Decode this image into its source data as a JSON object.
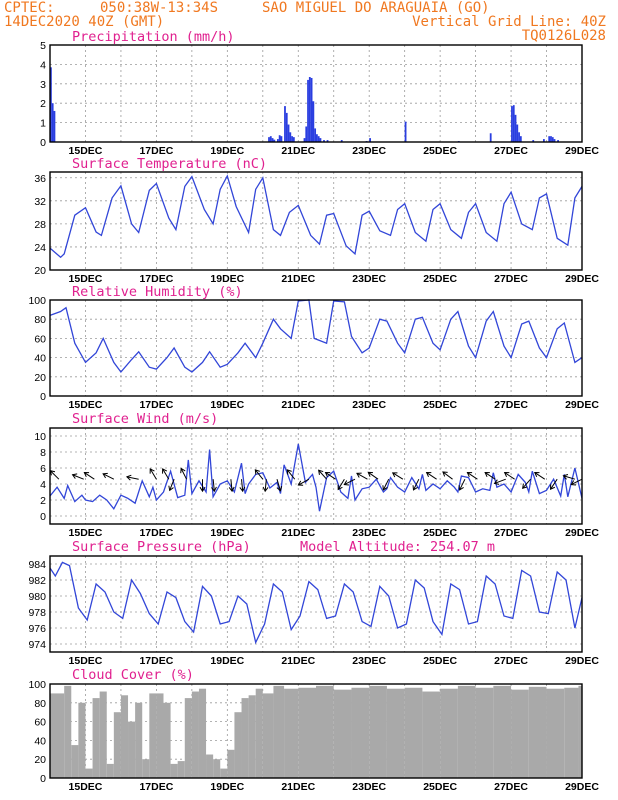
{
  "header": {
    "source": "CPTEC:",
    "coords": "050:38W-13:34S",
    "location": "SAO MIGUEL DO ARAGUAIA (GO)",
    "run": "14DEC2020 40Z (GMT)",
    "grid_note": "Vertical Grid Line: 40Z",
    "code": "TQ0126L028"
  },
  "x_ticks": [
    "15DEC",
    "17DEC",
    "19DEC",
    "21DEC",
    "23DEC",
    "25DEC",
    "27DEC",
    "29DEC"
  ],
  "colors": {
    "series": "#3246d8",
    "bars": "#2a3ee0",
    "cloud": "#a9a9a9",
    "title": "#e0208f",
    "header": "#f07820"
  },
  "chart_data": [
    {
      "type": "bar",
      "title": "Precipitation (mm/h)",
      "x_range": [
        14,
        29
      ],
      "ylim": [
        0,
        5
      ],
      "yticks": [
        0,
        1,
        2,
        3,
        4,
        5
      ],
      "x": [
        14.0,
        14.05,
        14.1,
        20.15,
        20.2,
        20.25,
        20.3,
        20.4,
        20.45,
        20.5,
        20.6,
        20.65,
        20.7,
        20.75,
        20.8,
        20.85,
        21.15,
        21.2,
        21.25,
        21.3,
        21.35,
        21.4,
        21.45,
        21.5,
        21.55,
        21.6,
        21.7,
        21.8,
        22.2,
        22.9,
        23.0,
        24.0,
        25.5,
        26.4,
        27.0,
        27.05,
        27.1,
        27.15,
        27.2,
        27.25,
        27.6,
        27.9,
        28.05,
        28.1,
        28.15,
        28.2,
        28.3
      ],
      "values": [
        3.85,
        2.0,
        1.6,
        0.25,
        0.3,
        0.2,
        0.12,
        0.15,
        0.35,
        0.3,
        1.85,
        1.5,
        0.9,
        0.5,
        0.3,
        0.25,
        0.2,
        0.8,
        3.2,
        3.35,
        3.3,
        2.1,
        0.7,
        0.4,
        0.3,
        0.2,
        0.1,
        0.1,
        0.1,
        0.05,
        0.2,
        1.05,
        0.05,
        0.45,
        1.85,
        1.9,
        1.4,
        0.9,
        0.5,
        0.3,
        0.1,
        0.15,
        0.3,
        0.3,
        0.25,
        0.15,
        0.1
      ]
    },
    {
      "type": "line",
      "title": "Surface Temperature (nC)",
      "x_range": [
        14,
        29
      ],
      "ylim": [
        20,
        37
      ],
      "yticks": [
        20,
        24,
        28,
        32,
        36
      ],
      "x": [
        14.0,
        14.3,
        14.4,
        14.7,
        15.0,
        15.3,
        15.45,
        15.75,
        16.0,
        16.3,
        16.5,
        16.8,
        17.0,
        17.35,
        17.55,
        17.8,
        18.0,
        18.35,
        18.6,
        18.8,
        19.0,
        19.25,
        19.6,
        19.8,
        20.0,
        20.3,
        20.5,
        20.75,
        21.0,
        21.35,
        21.6,
        21.8,
        22.0,
        22.35,
        22.6,
        22.8,
        23.0,
        23.3,
        23.6,
        23.8,
        24.0,
        24.3,
        24.6,
        24.8,
        25.0,
        25.3,
        25.6,
        25.8,
        26.0,
        26.3,
        26.6,
        26.8,
        27.0,
        27.3,
        27.6,
        27.8,
        28.0,
        28.3,
        28.6,
        28.8,
        29.0
      ],
      "values": [
        23.8,
        22.2,
        22.8,
        29.5,
        30.8,
        26.6,
        26.0,
        32.5,
        34.6,
        28.0,
        26.5,
        33.8,
        35.0,
        29.0,
        27.0,
        34.5,
        36.2,
        30.5,
        28.0,
        34.0,
        36.3,
        31.0,
        26.5,
        34.0,
        36.0,
        27.0,
        26.0,
        30.0,
        31.2,
        26.0,
        24.5,
        29.5,
        29.8,
        24.2,
        22.8,
        29.5,
        30.2,
        26.8,
        26.0,
        30.5,
        31.5,
        26.5,
        25.0,
        30.5,
        31.5,
        27.0,
        25.5,
        30.0,
        31.5,
        26.5,
        25.0,
        31.5,
        33.5,
        28.0,
        27.0,
        32.5,
        33.2,
        25.5,
        24.3,
        32.5,
        34.5
      ]
    },
    {
      "type": "line",
      "title": "Relative Humidity (%)",
      "x_range": [
        14,
        29
      ],
      "ylim": [
        0,
        100
      ],
      "yticks": [
        0,
        20,
        40,
        60,
        80,
        100
      ],
      "x": [
        14.0,
        14.3,
        14.45,
        14.7,
        15.0,
        15.3,
        15.5,
        15.8,
        16.0,
        16.3,
        16.5,
        16.8,
        17.0,
        17.3,
        17.5,
        17.8,
        18.0,
        18.3,
        18.5,
        18.8,
        19.0,
        19.3,
        19.5,
        19.8,
        20.0,
        20.3,
        20.5,
        20.8,
        21.0,
        21.3,
        21.45,
        21.8,
        22.0,
        22.3,
        22.5,
        22.8,
        23.0,
        23.3,
        23.5,
        23.8,
        24.0,
        24.3,
        24.5,
        24.8,
        25.0,
        25.3,
        25.5,
        25.8,
        26.0,
        26.3,
        26.5,
        26.8,
        27.0,
        27.3,
        27.5,
        27.8,
        28.0,
        28.3,
        28.5,
        28.8,
        29.0
      ],
      "values": [
        84,
        88,
        92,
        55,
        35,
        45,
        60,
        35,
        25,
        38,
        46,
        30,
        28,
        40,
        50,
        30,
        25,
        35,
        46,
        30,
        33,
        45,
        55,
        40,
        55,
        80,
        70,
        60,
        99,
        100,
        60,
        55,
        99,
        98,
        62,
        45,
        50,
        80,
        78,
        55,
        45,
        80,
        82,
        55,
        48,
        80,
        88,
        52,
        40,
        78,
        88,
        52,
        40,
        75,
        78,
        50,
        40,
        70,
        76,
        35,
        40
      ]
    },
    {
      "type": "line",
      "title": "Surface Wind (m/s)",
      "x_range": [
        14,
        29
      ],
      "ylim": [
        -1,
        11
      ],
      "yticks": [
        0,
        2,
        4,
        6,
        8,
        10
      ],
      "x": [
        14.0,
        14.2,
        14.4,
        14.5,
        14.7,
        14.9,
        15.0,
        15.2,
        15.4,
        15.6,
        15.8,
        16.0,
        16.2,
        16.4,
        16.6,
        16.8,
        16.9,
        17.0,
        17.2,
        17.4,
        17.6,
        17.8,
        17.9,
        18.0,
        18.2,
        18.4,
        18.5,
        18.6,
        18.8,
        19.0,
        19.2,
        19.4,
        19.5,
        19.6,
        19.8,
        20.0,
        20.2,
        20.4,
        20.5,
        20.6,
        20.8,
        21.0,
        21.2,
        21.4,
        21.5,
        21.6,
        21.8,
        22.0,
        22.2,
        22.4,
        22.5,
        22.6,
        22.8,
        23.0,
        23.2,
        23.4,
        23.5,
        23.6,
        23.8,
        24.0,
        24.2,
        24.4,
        24.5,
        24.6,
        24.8,
        25.0,
        25.2,
        25.4,
        25.5,
        25.6,
        25.8,
        26.0,
        26.2,
        26.4,
        26.5,
        26.6,
        26.8,
        27.0,
        27.2,
        27.4,
        27.5,
        27.6,
        27.8,
        28.0,
        28.2,
        28.4,
        28.5,
        28.6,
        28.8,
        29.0
      ],
      "values": [
        2.5,
        3.6,
        2.2,
        3.8,
        1.8,
        2.6,
        2.0,
        1.8,
        2.6,
        2.0,
        0.9,
        2.6,
        2.2,
        1.6,
        4.4,
        2.4,
        3.6,
        2.0,
        3.0,
        5.6,
        2.3,
        2.6,
        7.0,
        2.8,
        4.4,
        3.0,
        8.3,
        2.4,
        4.0,
        4.4,
        3.0,
        6.6,
        2.8,
        4.0,
        5.2,
        5.4,
        3.5,
        4.2,
        2.8,
        6.4,
        4.0,
        9.0,
        4.2,
        5.2,
        3.6,
        0.6,
        4.8,
        5.6,
        3.0,
        2.2,
        5.0,
        2.0,
        3.4,
        3.6,
        4.6,
        3.0,
        3.4,
        4.8,
        3.6,
        3.0,
        4.8,
        3.4,
        5.2,
        3.2,
        4.0,
        3.4,
        4.4,
        3.6,
        3.0,
        5.0,
        4.8,
        3.0,
        3.4,
        3.2,
        5.4,
        3.6,
        4.0,
        3.0,
        5.2,
        4.2,
        3.0,
        5.6,
        2.8,
        3.2,
        4.6,
        2.5,
        5.2,
        2.4,
        6.0,
        2.2
      ],
      "arrows": [
        {
          "x": 14.25,
          "dx": -1,
          "dy": -1
        },
        {
          "x": 14.95,
          "dx": -1,
          "dy": -0.4
        },
        {
          "x": 15.25,
          "dx": -0.9,
          "dy": -0.6
        },
        {
          "x": 15.8,
          "dx": -1,
          "dy": -0.5
        },
        {
          "x": 16.5,
          "dx": -1,
          "dy": -0.2
        },
        {
          "x": 17.0,
          "dx": -0.6,
          "dy": -1
        },
        {
          "x": 17.35,
          "dx": -0.6,
          "dy": -1
        },
        {
          "x": 17.5,
          "dx": -0.4,
          "dy": 1
        },
        {
          "x": 17.85,
          "dx": -0.5,
          "dy": -1
        },
        {
          "x": 18.3,
          "dx": 0,
          "dy": 1
        },
        {
          "x": 18.6,
          "dx": 0.1,
          "dy": 1
        },
        {
          "x": 19.1,
          "dx": 0.1,
          "dy": 1
        },
        {
          "x": 19.4,
          "dx": 0.1,
          "dy": 1
        },
        {
          "x": 20.0,
          "dx": -0.8,
          "dy": -1
        },
        {
          "x": 20.1,
          "dx": -0.1,
          "dy": 1
        },
        {
          "x": 20.4,
          "dx": 0.3,
          "dy": 1
        },
        {
          "x": 20.9,
          "dx": -0.8,
          "dy": -1
        },
        {
          "x": 21.3,
          "dx": -0.9,
          "dy": 0.5
        },
        {
          "x": 21.8,
          "dx": -0.8,
          "dy": -0.9
        },
        {
          "x": 22.05,
          "dx": -0.9,
          "dy": -0.6
        },
        {
          "x": 22.3,
          "dx": -0.6,
          "dy": 1
        },
        {
          "x": 22.6,
          "dx": -1,
          "dy": 0.5
        },
        {
          "x": 22.95,
          "dx": -0.9,
          "dy": -0.5
        },
        {
          "x": 23.25,
          "dx": -1,
          "dy": -0.7
        },
        {
          "x": 23.55,
          "dx": -0.5,
          "dy": 1
        },
        {
          "x": 23.95,
          "dx": -0.8,
          "dy": -0.5
        },
        {
          "x": 24.4,
          "dx": -0.5,
          "dy": 1
        },
        {
          "x": 24.9,
          "dx": -0.9,
          "dy": -0.6
        },
        {
          "x": 25.35,
          "dx": -0.8,
          "dy": -0.6
        },
        {
          "x": 25.7,
          "dx": -0.5,
          "dy": 1
        },
        {
          "x": 26.05,
          "dx": -0.9,
          "dy": -0.6
        },
        {
          "x": 26.55,
          "dx": -0.9,
          "dy": -0.6
        },
        {
          "x": 26.85,
          "dx": -0.8,
          "dy": 0.3
        },
        {
          "x": 27.1,
          "dx": -0.9,
          "dy": -0.6
        },
        {
          "x": 27.55,
          "dx": -0.7,
          "dy": 0.8
        },
        {
          "x": 27.95,
          "dx": -0.9,
          "dy": -0.6
        },
        {
          "x": 28.3,
          "dx": -0.6,
          "dy": 0.9
        },
        {
          "x": 28.8,
          "dx": -1,
          "dy": -0.3
        },
        {
          "x": 29.0,
          "dx": -0.8,
          "dy": 0.4
        }
      ]
    },
    {
      "type": "line",
      "title": "Surface Pressure (hPa)",
      "subtitle": "Model Altitude: 254.07 m",
      "x_range": [
        14,
        29
      ],
      "ylim": [
        973,
        985
      ],
      "yticks": [
        974,
        976,
        978,
        980,
        982,
        984
      ],
      "x": [
        14.0,
        14.15,
        14.35,
        14.55,
        14.8,
        15.05,
        15.3,
        15.55,
        15.8,
        16.05,
        16.3,
        16.55,
        16.8,
        17.05,
        17.3,
        17.55,
        17.8,
        18.05,
        18.3,
        18.55,
        18.8,
        19.05,
        19.3,
        19.55,
        19.8,
        20.05,
        20.3,
        20.55,
        20.8,
        21.05,
        21.3,
        21.55,
        21.8,
        22.05,
        22.3,
        22.55,
        22.8,
        23.05,
        23.3,
        23.55,
        23.8,
        24.05,
        24.3,
        24.55,
        24.8,
        25.05,
        25.3,
        25.55,
        25.8,
        26.05,
        26.3,
        26.55,
        26.8,
        27.05,
        27.3,
        27.55,
        27.8,
        28.05,
        28.3,
        28.55,
        28.8,
        29.0
      ],
      "values": [
        983.5,
        982.5,
        984.2,
        983.8,
        978.5,
        977,
        981.5,
        980.5,
        978,
        977.2,
        982,
        980.3,
        977.8,
        976.5,
        980.5,
        979.8,
        976.8,
        975.5,
        981.2,
        980,
        976.5,
        976.8,
        980,
        979,
        974.2,
        976.5,
        981.5,
        980.5,
        975.8,
        977.5,
        981.8,
        980.8,
        977.2,
        977.5,
        981.5,
        980.5,
        976.8,
        976.2,
        981.2,
        980,
        976,
        976.5,
        982,
        981,
        976.8,
        975.2,
        981.5,
        980.8,
        976.5,
        976.8,
        982.5,
        981.5,
        977.5,
        977.2,
        983.2,
        982.5,
        978,
        977.8,
        983,
        982,
        976,
        979.8
      ]
    },
    {
      "type": "bar",
      "title": "Cloud Cover (%)",
      "x_range": [
        14,
        29
      ],
      "ylim": [
        0,
        100
      ],
      "yticks": [
        0,
        20,
        40,
        60,
        80,
        100
      ],
      "x": [
        14.0,
        14.4,
        14.6,
        14.8,
        15.0,
        15.2,
        15.4,
        15.6,
        15.8,
        16.0,
        16.2,
        16.4,
        16.6,
        16.8,
        17.0,
        17.2,
        17.4,
        17.6,
        17.8,
        18.0,
        18.2,
        18.4,
        18.6,
        18.8,
        19.0,
        19.2,
        19.4,
        19.6,
        19.8,
        20.0,
        20.3,
        20.6,
        21.0,
        21.5,
        22.0,
        22.5,
        23.0,
        23.5,
        24.0,
        24.5,
        25.0,
        25.5,
        26.0,
        26.5,
        27.0,
        27.5,
        28.0,
        28.5,
        28.9
      ],
      "values": [
        90,
        98,
        35,
        80,
        10,
        85,
        92,
        15,
        70,
        88,
        60,
        80,
        20,
        90,
        90,
        80,
        15,
        18,
        85,
        92,
        95,
        25,
        20,
        10,
        30,
        70,
        85,
        88,
        95,
        90,
        98,
        95,
        96,
        98,
        94,
        96,
        98,
        95,
        96,
        92,
        95,
        98,
        96,
        98,
        94,
        97,
        95,
        96,
        98
      ]
    }
  ]
}
